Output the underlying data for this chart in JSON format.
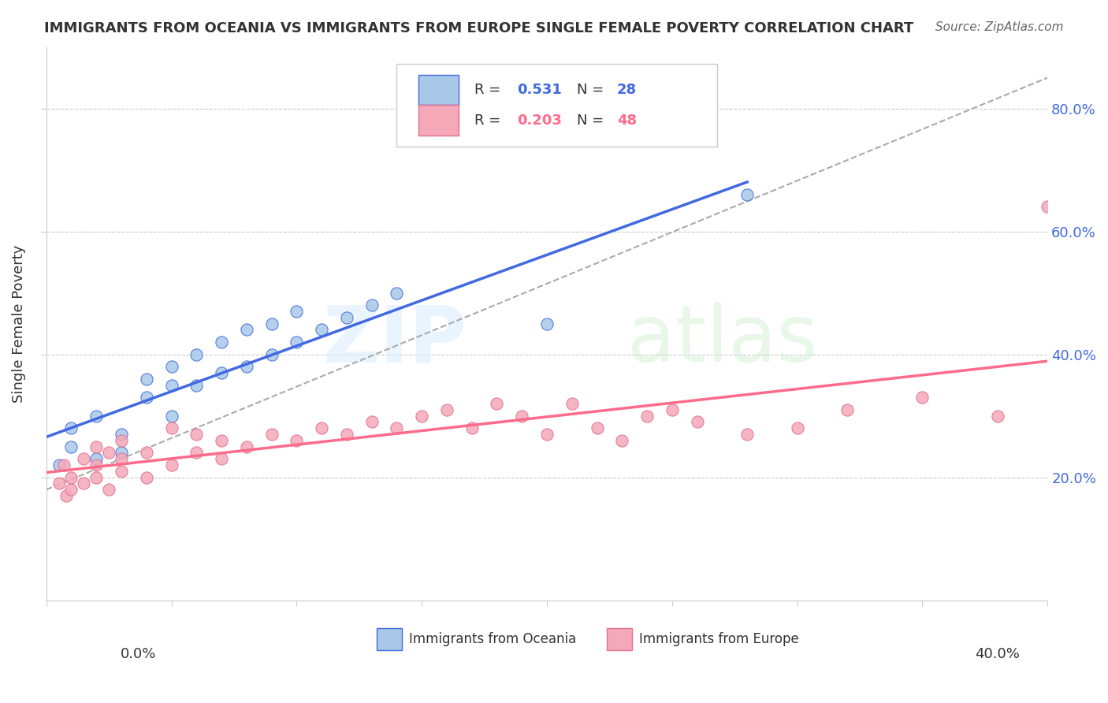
{
  "title": "IMMIGRANTS FROM OCEANIA VS IMMIGRANTS FROM EUROPE SINGLE FEMALE POVERTY CORRELATION CHART",
  "source": "Source: ZipAtlas.com",
  "ylabel": "Single Female Poverty",
  "xmin": 0.0,
  "xmax": 0.4,
  "ymin": 0.0,
  "ymax": 0.9,
  "legend_R1": "0.531",
  "legend_N1": "28",
  "legend_R2": "0.203",
  "legend_N2": "48",
  "color_oceania": "#a8c8e8",
  "color_europe": "#f4a8b8",
  "color_trend_oceania": "#4169e1",
  "color_trend_europe": "#ff6b8a",
  "oceania_x": [
    0.005,
    0.01,
    0.01,
    0.02,
    0.02,
    0.03,
    0.03,
    0.04,
    0.04,
    0.05,
    0.05,
    0.05,
    0.06,
    0.06,
    0.07,
    0.07,
    0.08,
    0.08,
    0.09,
    0.09,
    0.1,
    0.1,
    0.11,
    0.12,
    0.13,
    0.14,
    0.2,
    0.28
  ],
  "oceania_y": [
    0.22,
    0.25,
    0.28,
    0.23,
    0.3,
    0.24,
    0.27,
    0.33,
    0.36,
    0.3,
    0.35,
    0.38,
    0.35,
    0.4,
    0.37,
    0.42,
    0.38,
    0.44,
    0.4,
    0.45,
    0.42,
    0.47,
    0.44,
    0.46,
    0.48,
    0.5,
    0.45,
    0.66
  ],
  "europe_x": [
    0.005,
    0.007,
    0.008,
    0.01,
    0.01,
    0.015,
    0.015,
    0.02,
    0.02,
    0.02,
    0.025,
    0.025,
    0.03,
    0.03,
    0.03,
    0.04,
    0.04,
    0.05,
    0.05,
    0.06,
    0.06,
    0.07,
    0.07,
    0.08,
    0.09,
    0.1,
    0.11,
    0.12,
    0.13,
    0.14,
    0.15,
    0.16,
    0.17,
    0.18,
    0.19,
    0.2,
    0.21,
    0.22,
    0.23,
    0.24,
    0.25,
    0.26,
    0.28,
    0.3,
    0.32,
    0.35,
    0.38,
    0.4
  ],
  "europe_y": [
    0.19,
    0.22,
    0.17,
    0.2,
    0.18,
    0.19,
    0.23,
    0.2,
    0.22,
    0.25,
    0.18,
    0.24,
    0.21,
    0.23,
    0.26,
    0.2,
    0.24,
    0.22,
    0.28,
    0.24,
    0.27,
    0.23,
    0.26,
    0.25,
    0.27,
    0.26,
    0.28,
    0.27,
    0.29,
    0.28,
    0.3,
    0.31,
    0.28,
    0.32,
    0.3,
    0.27,
    0.32,
    0.28,
    0.26,
    0.3,
    0.31,
    0.29,
    0.27,
    0.28,
    0.31,
    0.33,
    0.3,
    0.64
  ]
}
